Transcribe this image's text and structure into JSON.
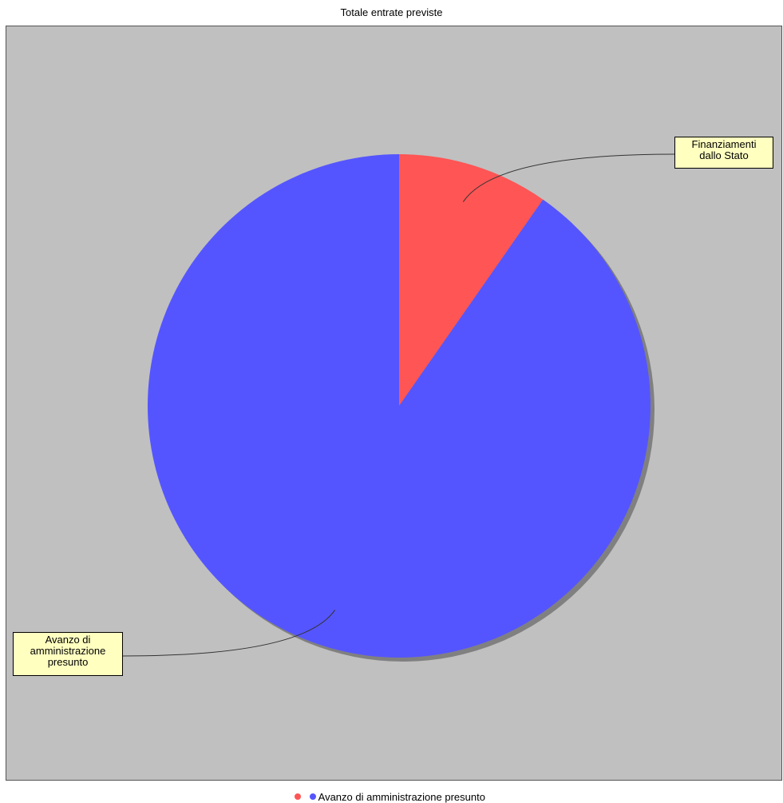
{
  "chart_data": {
    "type": "pie",
    "title": "Totale entrate previste",
    "slices": [
      {
        "label": "Finanziamenti\ndallo Stato",
        "value": 9.7,
        "color": "#ff5555"
      },
      {
        "label": "Avanzo di\namministrazione\npresunto",
        "value": 90.3,
        "color": "#5555ff"
      }
    ],
    "start_angle_deg": 0,
    "direction": "clockwise",
    "background_color": "#c0c0c0",
    "label_box_color": "#ffffc0",
    "legend": {
      "placement": "bottom-center",
      "entries": [
        {
          "label": "",
          "color": "#ff5555"
        },
        {
          "label": "Avanzo di amministrazione presunto",
          "color": "#5555ff"
        }
      ]
    }
  }
}
